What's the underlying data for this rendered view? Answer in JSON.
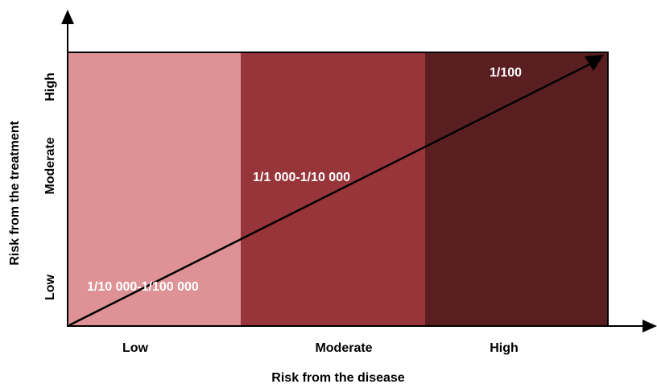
{
  "axes": {
    "x_title": "Risk from the disease",
    "y_title": "Risk from the treatment",
    "x_levels": [
      "Low",
      "Moderate",
      "High"
    ],
    "y_levels": [
      "Low",
      "Moderate",
      "High"
    ]
  },
  "zones": [
    {
      "risk_label": "1/10 000-1/100 000",
      "color": "#de9296"
    },
    {
      "risk_label": "1/1 000-1/10 000",
      "color": "#97353a"
    },
    {
      "risk_label": "1/100",
      "color": "#5b1e20"
    }
  ],
  "colors": {
    "axis": "#000000",
    "label_on_zone": "#ffffff",
    "text": "#000000"
  }
}
